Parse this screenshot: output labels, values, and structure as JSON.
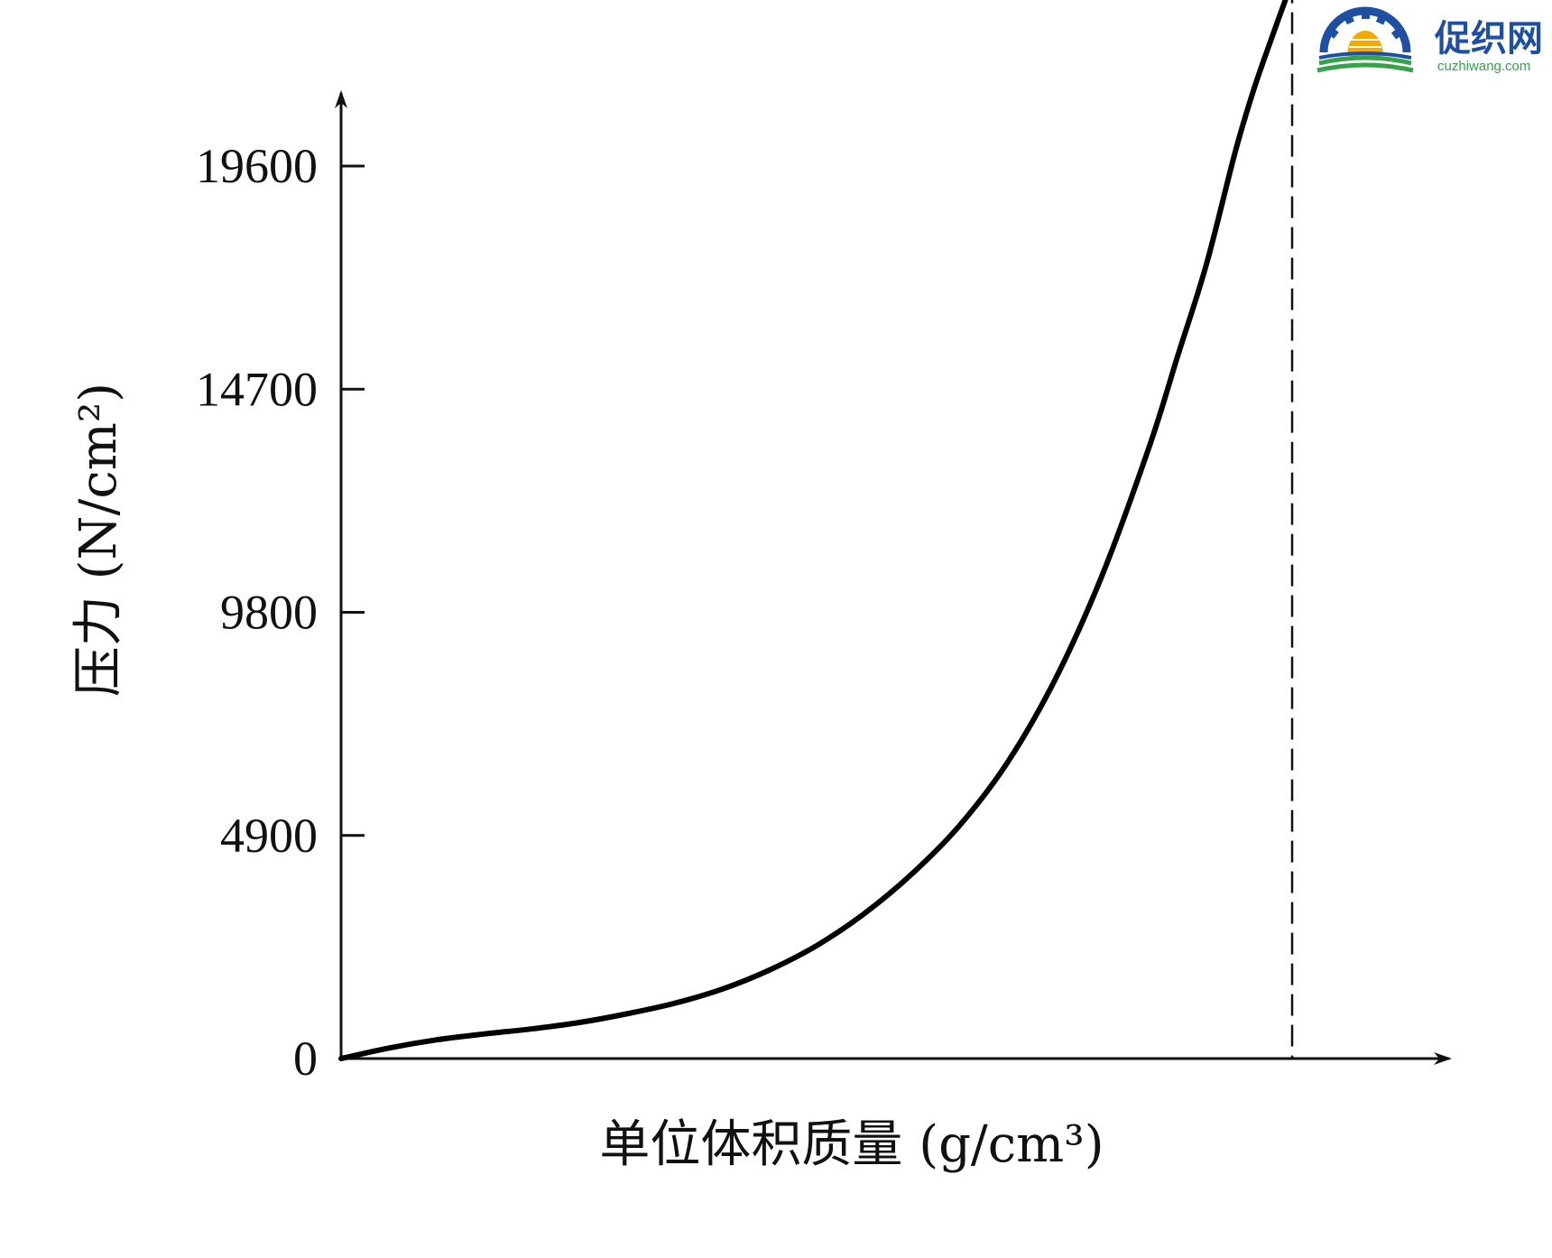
{
  "chart_data": {
    "type": "line",
    "title": "",
    "xlabel": "单位体积质量",
    "xlabel_unit": "(g/cm³)",
    "ylabel": "压力",
    "ylabel_unit": "(N/cm²)",
    "x_tick_labels": [],
    "y_ticks": [
      0,
      4900,
      9800,
      14700,
      19600
    ],
    "y_tick_labels": [
      "0",
      "4900",
      "9800",
      "14700",
      "19600"
    ],
    "ylim": [
      0,
      21000
    ],
    "xlim": [
      0,
      1.17
    ],
    "grid": false,
    "series": [
      {
        "x": [
          0,
          0.05,
          0.1,
          0.15,
          0.2,
          0.25,
          0.3,
          0.35,
          0.4,
          0.45,
          0.5,
          0.55,
          0.6,
          0.65,
          0.7,
          0.75,
          0.8,
          0.85,
          0.88,
          0.91,
          0.94,
          0.96,
          0.98,
          1.0
        ],
        "values": [
          0,
          230,
          410,
          540,
          650,
          790,
          980,
          1210,
          1520,
          1940,
          2480,
          3180,
          4050,
          5110,
          6480,
          8290,
          10600,
          13450,
          15450,
          17450,
          19900,
          21300,
          22500,
          23650
        ],
        "color": "#000000"
      }
    ],
    "reference_line": {
      "x": 1.0,
      "style": "dashed"
    }
  },
  "logo": {
    "name": "促织网",
    "url_text": "cuzhiwang.com",
    "colors": {
      "gear": "#1e4fa3",
      "sun": "#f2a900",
      "field": "#37a24a"
    }
  }
}
